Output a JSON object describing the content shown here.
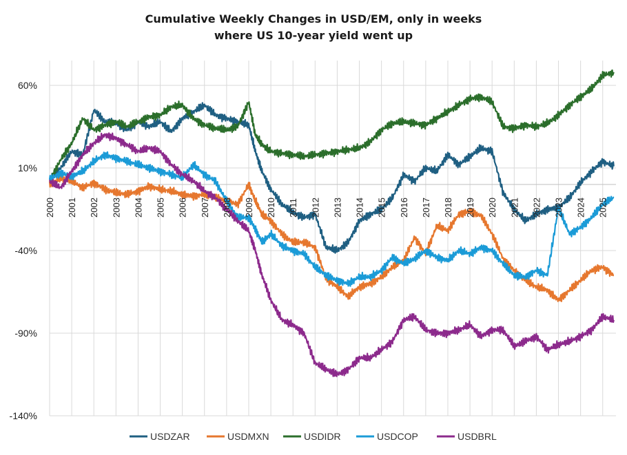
{
  "chart_data": {
    "type": "line",
    "title_lines": [
      "Cumulative Weekly Changes in USD/EM, only in weeks",
      "where US 10-year yield went up"
    ],
    "xlabel": "",
    "ylabel": "",
    "xlim": [
      2000.0,
      2025.6
    ],
    "ylim": [
      -140,
      75
    ],
    "yticks": [
      60,
      10,
      -40,
      -90,
      -140
    ],
    "ytick_labels": [
      "60%",
      "10%",
      "-40%",
      "-90%",
      "-140%"
    ],
    "xticks": [
      2000,
      2001,
      2002,
      2003,
      2004,
      2005,
      2006,
      2007,
      2008,
      2009,
      2010,
      2011,
      2012,
      2013,
      2014,
      2015,
      2016,
      2017,
      2018,
      2019,
      2020,
      2021,
      2022,
      2023,
      2024,
      2025
    ],
    "xtick_labels": [
      "2000",
      "2001",
      "2002",
      "2003",
      "2004",
      "2005",
      "2006",
      "2007",
      "2008",
      "2009",
      "2010",
      "2011",
      "2012",
      "2013",
      "2014",
      "2015",
      "2016",
      "2017",
      "2018",
      "2019",
      "2020",
      "2021",
      "2022",
      "2023",
      "2024",
      "2025"
    ],
    "grid": "vertical-and-horizontal",
    "legend_position": "bottom",
    "series": [
      {
        "name": "USDZAR",
        "color": "#1f5f82",
        "x": [
          2000,
          2000.5,
          2001,
          2001.5,
          2002,
          2002.5,
          2003,
          2003.5,
          2004,
          2004.5,
          2005,
          2005.5,
          2006,
          2006.5,
          2007,
          2007.5,
          2008,
          2008.5,
          2009,
          2009.3,
          2009.6,
          2010,
          2010.5,
          2011,
          2011.5,
          2012,
          2012.5,
          2013,
          2013.5,
          2014,
          2014.5,
          2015,
          2015.5,
          2016,
          2016.5,
          2017,
          2017.5,
          2018,
          2018.5,
          2019,
          2019.5,
          2020,
          2020.5,
          2021,
          2021.5,
          2022,
          2022.5,
          2023,
          2023.5,
          2024,
          2024.5,
          2025,
          2025.5
        ],
        "y": [
          3,
          10,
          20,
          18,
          45,
          38,
          37,
          33,
          38,
          35,
          38,
          32,
          40,
          44,
          48,
          42,
          40,
          38,
          36,
          20,
          8,
          -3,
          -12,
          -17,
          -20,
          -18,
          -38,
          -40,
          -35,
          -22,
          -18,
          -15,
          -8,
          6,
          2,
          10,
          8,
          18,
          12,
          17,
          22,
          20,
          -5,
          -15,
          -22,
          -18,
          -15,
          -14,
          -8,
          1,
          8,
          14,
          11
        ]
      },
      {
        "name": "USDMXN",
        "color": "#e6772e",
        "x": [
          2000,
          2000.5,
          2001,
          2001.5,
          2002,
          2002.5,
          2003,
          2003.5,
          2004,
          2004.5,
          2005,
          2005.5,
          2006,
          2006.5,
          2007,
          2007.5,
          2008,
          2008.5,
          2009,
          2009.3,
          2009.6,
          2010,
          2010.5,
          2011,
          2011.5,
          2012,
          2012.5,
          2013,
          2013.5,
          2014,
          2014.5,
          2015,
          2015.5,
          2016,
          2016.5,
          2017,
          2017.5,
          2018,
          2018.5,
          2019,
          2019.5,
          2020,
          2020.5,
          2021,
          2021.5,
          2022,
          2022.5,
          2023,
          2023.5,
          2024,
          2024.5,
          2025,
          2025.5
        ],
        "y": [
          0,
          4,
          2,
          -2,
          1,
          -3,
          -5,
          -6,
          -4,
          -1,
          -3,
          -4,
          -6,
          -7,
          -6,
          -8,
          -10,
          -12,
          0,
          -10,
          -18,
          -22,
          -30,
          -35,
          -35,
          -38,
          -57,
          -62,
          -68,
          -62,
          -60,
          -56,
          -50,
          -46,
          -32,
          -42,
          -25,
          -28,
          -18,
          -16,
          -19,
          -30,
          -45,
          -52,
          -58,
          -62,
          -64,
          -70,
          -64,
          -58,
          -52,
          -50,
          -55
        ]
      },
      {
        "name": "USDIDR",
        "color": "#2b6e2b",
        "x": [
          2000,
          2000.5,
          2001,
          2001.5,
          2002,
          2002.5,
          2003,
          2003.5,
          2004,
          2004.5,
          2005,
          2005.5,
          2006,
          2006.5,
          2007,
          2007.5,
          2008,
          2008.5,
          2009,
          2009.3,
          2009.6,
          2010,
          2010.5,
          2011,
          2011.5,
          2012,
          2012.5,
          2013,
          2013.5,
          2014,
          2014.5,
          2015,
          2015.5,
          2016,
          2016.5,
          2017,
          2017.5,
          2018,
          2018.5,
          2019,
          2019.5,
          2020,
          2020.5,
          2021,
          2021.5,
          2022,
          2022.5,
          2023,
          2023.5,
          2024,
          2024.5,
          2025,
          2025.5
        ],
        "y": [
          2,
          15,
          25,
          40,
          33,
          36,
          38,
          35,
          38,
          41,
          42,
          47,
          48,
          40,
          36,
          34,
          33,
          35,
          50,
          30,
          24,
          20,
          19,
          18,
          17,
          18,
          19,
          20,
          21,
          22,
          26,
          33,
          37,
          38,
          37,
          36,
          40,
          44,
          48,
          52,
          53,
          50,
          35,
          34,
          36,
          35,
          37,
          42,
          48,
          53,
          58,
          66,
          68
        ]
      },
      {
        "name": "USDCOP",
        "color": "#1b9bd7",
        "x": [
          2000,
          2000.5,
          2001,
          2001.5,
          2002,
          2002.5,
          2003,
          2003.5,
          2004,
          2004.5,
          2005,
          2005.5,
          2006,
          2006.5,
          2007,
          2007.5,
          2008,
          2008.5,
          2009,
          2009.3,
          2009.6,
          2010,
          2010.5,
          2011,
          2011.5,
          2012,
          2012.5,
          2013,
          2013.5,
          2014,
          2014.5,
          2015,
          2015.5,
          2016,
          2016.5,
          2017,
          2017.5,
          2018,
          2018.5,
          2019,
          2019.5,
          2020,
          2020.5,
          2021,
          2021.5,
          2022,
          2022.5,
          2023,
          2023.5,
          2024,
          2024.5,
          2025,
          2025.5
        ],
        "y": [
          3,
          7,
          5,
          8,
          14,
          18,
          16,
          14,
          12,
          10,
          8,
          6,
          4,
          12,
          6,
          2,
          -10,
          -20,
          -20,
          -27,
          -35,
          -30,
          -37,
          -40,
          -42,
          -50,
          -55,
          -58,
          -60,
          -56,
          -56,
          -52,
          -44,
          -48,
          -45,
          -40,
          -44,
          -46,
          -40,
          -42,
          -38,
          -40,
          -48,
          -55,
          -56,
          -52,
          -55,
          -14,
          -30,
          -26,
          -20,
          -12,
          -8
        ]
      },
      {
        "name": "USDBRL",
        "color": "#8c2a8c",
        "x": [
          2000,
          2000.5,
          2001,
          2001.5,
          2002,
          2002.5,
          2003,
          2003.5,
          2004,
          2004.5,
          2005,
          2005.5,
          2006,
          2006.5,
          2007,
          2007.5,
          2008,
          2008.5,
          2009,
          2009.3,
          2009.6,
          2010,
          2010.5,
          2011,
          2011.5,
          2012,
          2012.5,
          2013,
          2013.5,
          2014,
          2014.5,
          2015,
          2015.5,
          2016,
          2016.5,
          2017,
          2017.5,
          2018,
          2018.5,
          2019,
          2019.5,
          2020,
          2020.5,
          2021,
          2021.5,
          2022,
          2022.5,
          2023,
          2023.5,
          2024,
          2024.5,
          2025,
          2025.5
        ],
        "y": [
          2,
          -2,
          8,
          18,
          25,
          30,
          28,
          24,
          20,
          22,
          20,
          12,
          6,
          2,
          -4,
          -8,
          -15,
          -22,
          -28,
          -40,
          -55,
          -70,
          -82,
          -85,
          -90,
          -108,
          -112,
          -115,
          -112,
          -105,
          -105,
          -100,
          -95,
          -82,
          -80,
          -88,
          -90,
          -90,
          -88,
          -85,
          -92,
          -88,
          -88,
          -98,
          -95,
          -92,
          -100,
          -97,
          -95,
          -92,
          -88,
          -80,
          -82
        ]
      }
    ]
  }
}
